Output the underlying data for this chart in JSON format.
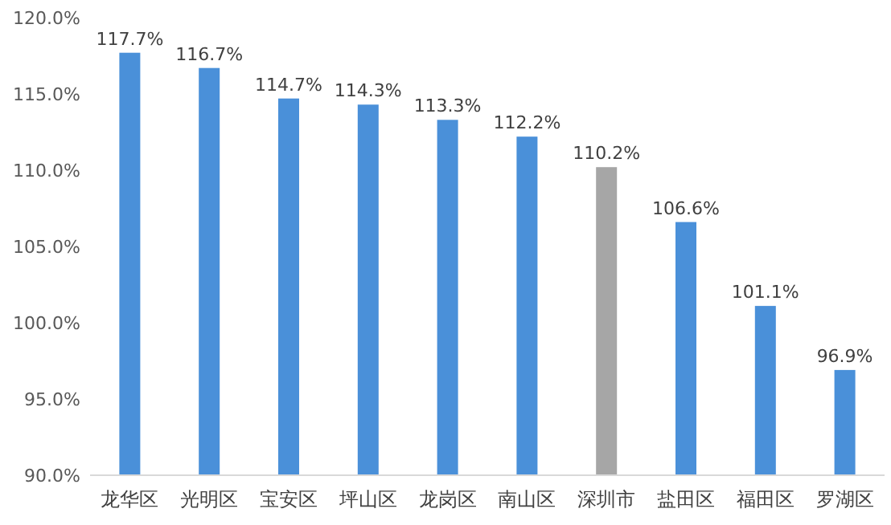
{
  "chart_data": {
    "type": "bar",
    "categories": [
      "龙华区",
      "光明区",
      "宝安区",
      "坪山区",
      "龙岗区",
      "南山区",
      "深圳市",
      "盐田区",
      "福田区",
      "罗湖区"
    ],
    "values": [
      117.7,
      116.7,
      114.7,
      114.3,
      113.3,
      112.2,
      110.2,
      106.6,
      101.1,
      96.9
    ],
    "colors": [
      "#4a90d9",
      "#4a90d9",
      "#4a90d9",
      "#4a90d9",
      "#4a90d9",
      "#4a90d9",
      "#a6a6a6",
      "#4a90d9",
      "#4a90d9",
      "#4a90d9"
    ],
    "value_labels": [
      "117.7%",
      "116.7%",
      "114.7%",
      "114.3%",
      "113.3%",
      "112.2%",
      "110.2%",
      "106.6%",
      "101.1%",
      "96.9%"
    ],
    "ylim": [
      90,
      120
    ],
    "yticks": [
      {
        "value": 90,
        "label": "90.0%"
      },
      {
        "value": 95,
        "label": "95.0%"
      },
      {
        "value": 100,
        "label": "100.0%"
      },
      {
        "value": 105,
        "label": "105.0%"
      },
      {
        "value": 110,
        "label": "110.0%"
      },
      {
        "value": 115,
        "label": "115.0%"
      },
      {
        "value": 120,
        "label": "120.0%"
      }
    ]
  }
}
